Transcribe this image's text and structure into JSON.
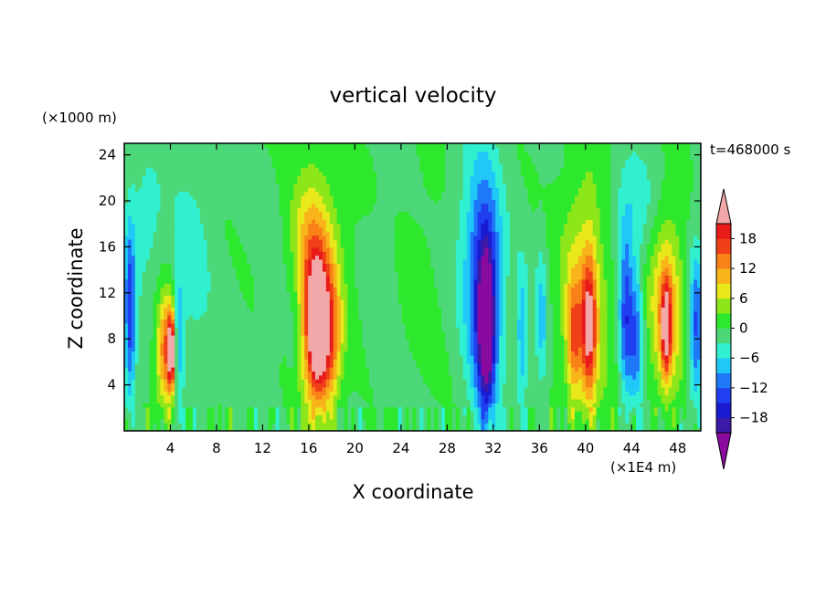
{
  "chart_data": {
    "type": "heatmap",
    "title": "vertical velocity",
    "xlabel": "X coordinate",
    "ylabel": "Z coordinate",
    "x_unit": "(×1E4 m)",
    "y_unit": "(×1000 m)",
    "time_label": "t=468000 s",
    "xlim": [
      0,
      50
    ],
    "ylim": [
      0,
      25
    ],
    "x_ticks": [
      4,
      8,
      12,
      16,
      20,
      24,
      28,
      32,
      36,
      40,
      44,
      48
    ],
    "y_ticks": [
      4,
      8,
      12,
      16,
      20,
      24
    ],
    "colorbar": {
      "levels": [
        -21,
        -18,
        -15,
        -12,
        -9,
        -6,
        -3,
        0,
        3,
        6,
        9,
        12,
        15,
        18,
        21
      ],
      "tick_values": [
        -18,
        -12,
        -6,
        0,
        6,
        12,
        18
      ],
      "tick_labels": [
        "−18",
        "−12",
        "−6",
        "0",
        "6",
        "12",
        "18"
      ],
      "colors": [
        "#7a0a9a",
        "#3c1aa8",
        "#1a1ad0",
        "#1f3ff0",
        "#1e78f8",
        "#20c8f8",
        "#30f0d0",
        "#4cd878",
        "#2ee82e",
        "#8ce61a",
        "#e8e81a",
        "#f8b41a",
        "#f88218",
        "#f04018",
        "#e81a1a",
        "#f2a0a0"
      ],
      "under_color": "#8a0aa0",
      "over_color": "#f2a8a8"
    },
    "features": [
      {
        "x": 0.5,
        "z": 10,
        "w": 0.5,
        "h": 8,
        "v": -13
      },
      {
        "x": 3.7,
        "z": 7,
        "w": 0.9,
        "h": 5,
        "v": 17
      },
      {
        "x": 4.1,
        "z": 7,
        "w": 0.3,
        "h": 3,
        "v": 20
      },
      {
        "x": 4.7,
        "z": 8,
        "w": 0.45,
        "h": 5,
        "v": -11
      },
      {
        "x": 5.8,
        "z": 14,
        "w": 1.8,
        "h": 10,
        "v": -3.5
      },
      {
        "x": 1.8,
        "z": 18,
        "w": 1.6,
        "h": 6,
        "v": -4
      },
      {
        "x": 16.3,
        "z": 11,
        "w": 1.6,
        "h": 9,
        "v": 15
      },
      {
        "x": 16.7,
        "z": 9,
        "w": 0.7,
        "h": 5,
        "v": 19
      },
      {
        "x": 17.7,
        "z": 8,
        "w": 1.1,
        "h": 6,
        "v": 14
      },
      {
        "x": 17,
        "z": 16,
        "w": 2.8,
        "h": 8,
        "v": 4
      },
      {
        "x": 14.8,
        "z": 9,
        "w": 0.8,
        "h": 6,
        "v": -5
      },
      {
        "x": 12.8,
        "z": 12,
        "w": 1.0,
        "h": 8,
        "v": -2
      },
      {
        "x": 31.3,
        "z": 11,
        "w": 1.3,
        "h": 10,
        "v": -15
      },
      {
        "x": 31.4,
        "z": 9,
        "w": 0.6,
        "h": 6,
        "v": -18
      },
      {
        "x": 30.5,
        "z": 16,
        "w": 2.2,
        "h": 10,
        "v": -5
      },
      {
        "x": 34.5,
        "z": 8,
        "w": 0.5,
        "h": 6,
        "v": -8
      },
      {
        "x": 36.2,
        "z": 10,
        "w": 0.5,
        "h": 6,
        "v": -7
      },
      {
        "x": 40,
        "z": 12,
        "w": 2.2,
        "h": 11,
        "v": 9
      },
      {
        "x": 40.3,
        "z": 9,
        "w": 0.6,
        "h": 6,
        "v": 17
      },
      {
        "x": 39,
        "z": 8,
        "w": 0.6,
        "h": 5,
        "v": 11
      },
      {
        "x": 43.5,
        "z": 10,
        "w": 0.6,
        "h": 7,
        "v": -13
      },
      {
        "x": 44.4,
        "z": 8,
        "w": 0.6,
        "h": 6,
        "v": -10
      },
      {
        "x": 44,
        "z": 19,
        "w": 2.2,
        "h": 5,
        "v": -5
      },
      {
        "x": 47,
        "z": 11,
        "w": 1.5,
        "h": 8,
        "v": 12
      },
      {
        "x": 47,
        "z": 9,
        "w": 0.4,
        "h": 4,
        "v": 19
      },
      {
        "x": 49.6,
        "z": 9,
        "w": 0.6,
        "h": 7,
        "v": -12
      },
      {
        "x": 26,
        "z": 14,
        "w": 3.0,
        "h": 12,
        "v": 1.5
      },
      {
        "x": 22.5,
        "z": 12,
        "w": 1.2,
        "h": 8,
        "v": -2
      }
    ]
  }
}
